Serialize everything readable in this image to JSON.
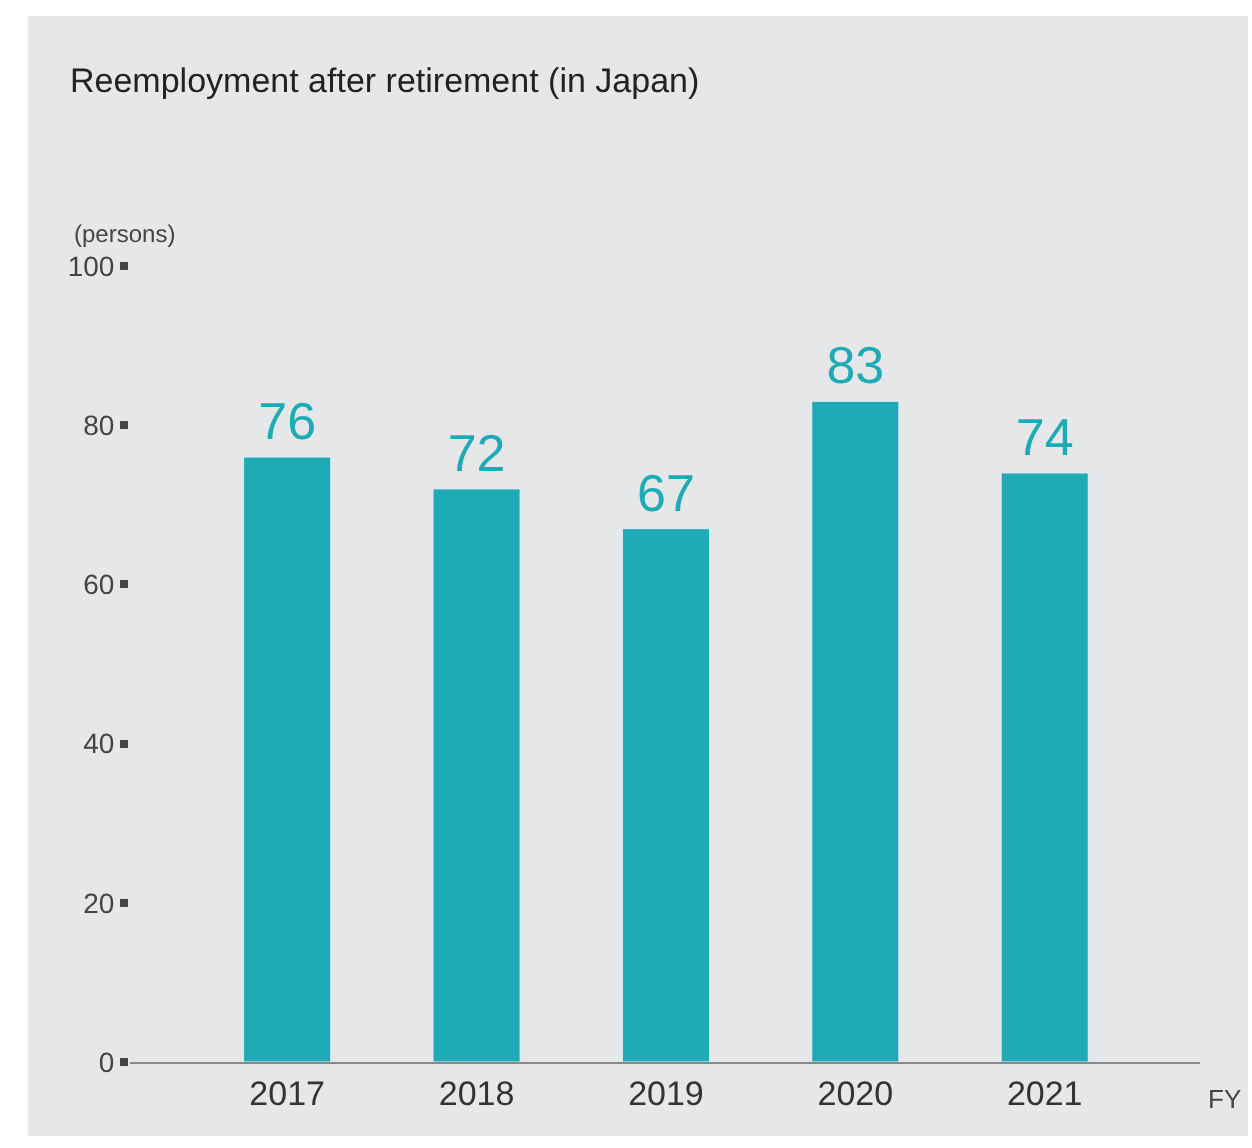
{
  "chart_data": {
    "type": "bar",
    "title": "Reemployment after retirement (in Japan)",
    "ylabel": "(persons)",
    "xlabel": "FY",
    "categories": [
      "2017",
      "2018",
      "2019",
      "2020",
      "2021"
    ],
    "values": [
      76,
      72,
      67,
      83,
      74
    ],
    "color": "#1fabb5",
    "ylim": [
      0,
      100
    ],
    "yticks": [
      0,
      20,
      40,
      60,
      80,
      100
    ],
    "grid": false,
    "data_labels": true,
    "legend": false
  }
}
